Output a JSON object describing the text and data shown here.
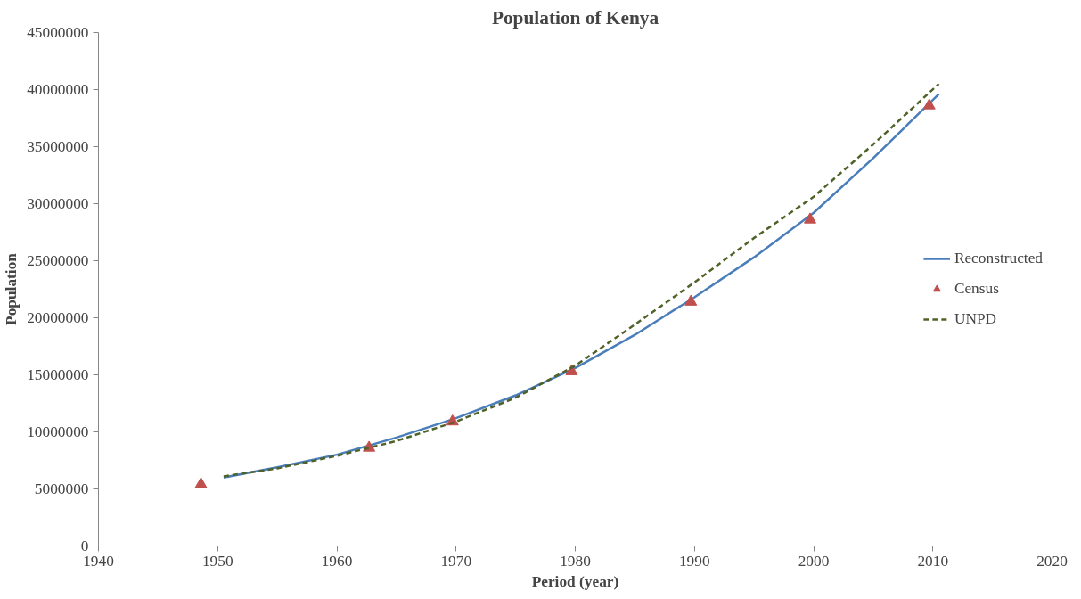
{
  "chart_data": {
    "type": "line",
    "title": "Population of Kenya",
    "xlabel": "Period (year)",
    "ylabel": "Population",
    "xlim": [
      1940,
      2020
    ],
    "xticks": [
      1940,
      1950,
      1960,
      1970,
      1980,
      1990,
      2000,
      2010,
      2020
    ],
    "ylim": [
      0,
      45000000
    ],
    "yticks": [
      0,
      5000000,
      10000000,
      15000000,
      20000000,
      25000000,
      30000000,
      35000000,
      40000000,
      45000000
    ],
    "grid": false,
    "legend": "right",
    "series": [
      {
        "name": "Reconstructed",
        "color": "#4a7ebb",
        "line_style": "solid",
        "x": [
          1950.5,
          1955,
          1960,
          1965,
          1970,
          1975,
          1980,
          1985,
          1990,
          1995,
          2000,
          2005,
          2010.5
        ],
        "values": [
          6000000,
          6900000,
          8000000,
          9500000,
          11200000,
          13200000,
          15600000,
          18500000,
          21800000,
          25300000,
          29200000,
          34000000,
          39600000
        ]
      },
      {
        "name": "Census",
        "type": "scatter",
        "color": "#c0504d",
        "marker": "triangle",
        "x": [
          1948.6,
          1962.7,
          1969.7,
          1979.7,
          1989.7,
          1999.7,
          2009.7
        ],
        "values": [
          5400000,
          8600000,
          10900000,
          15300000,
          21400000,
          28600000,
          38600000
        ]
      },
      {
        "name": "UNPD",
        "color": "#4f6228",
        "line_style": "dashed",
        "x": [
          1950.5,
          1955,
          1960,
          1965,
          1970,
          1975,
          1980,
          1985,
          1990,
          1995,
          2000,
          2005,
          2010.5
        ],
        "values": [
          6100000,
          6800000,
          7900000,
          9200000,
          10900000,
          13000000,
          15800000,
          19400000,
          23100000,
          27000000,
          30600000,
          35200000,
          40500000
        ]
      }
    ]
  }
}
